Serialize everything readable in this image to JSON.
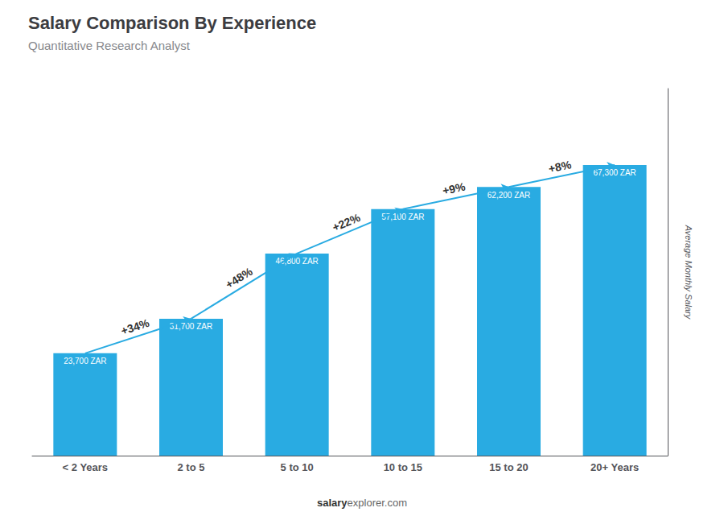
{
  "chart_data": {
    "type": "bar",
    "title": "Salary Comparison By Experience",
    "subtitle": "Quantitative Research Analyst",
    "y_label": "Average Monthly Salary",
    "categories": [
      "< 2 Years",
      "2 to 5",
      "5 to 10",
      "10 to 15",
      "15 to 20",
      "20+ Years"
    ],
    "values": [
      23700,
      31700,
      46800,
      57100,
      62200,
      67300
    ],
    "value_labels": [
      "23,700 ZAR",
      "31,700 ZAR",
      "46,800 ZAR",
      "57,100 ZAR",
      "62,200 ZAR",
      "67,300 ZAR"
    ],
    "data_labels": true,
    "color": "#29ABE2",
    "ylim": [
      0,
      85000
    ],
    "grid": false,
    "tick_labels": "x",
    "annotations": [
      {
        "text": "+34%",
        "from": "< 2 Years",
        "to": "2 to 5"
      },
      {
        "text": "+48%",
        "from": "2 to 5",
        "to": "5 to 10"
      },
      {
        "text": "+22%",
        "from": "5 to 10",
        "to": "10 to 15"
      },
      {
        "text": "+9%",
        "from": "10 to 15",
        "to": "15 to 20"
      },
      {
        "text": "+8%",
        "from": "15 to 20",
        "to": "20+ Years"
      }
    ],
    "footer": [
      "salary",
      "explorer.com"
    ]
  }
}
